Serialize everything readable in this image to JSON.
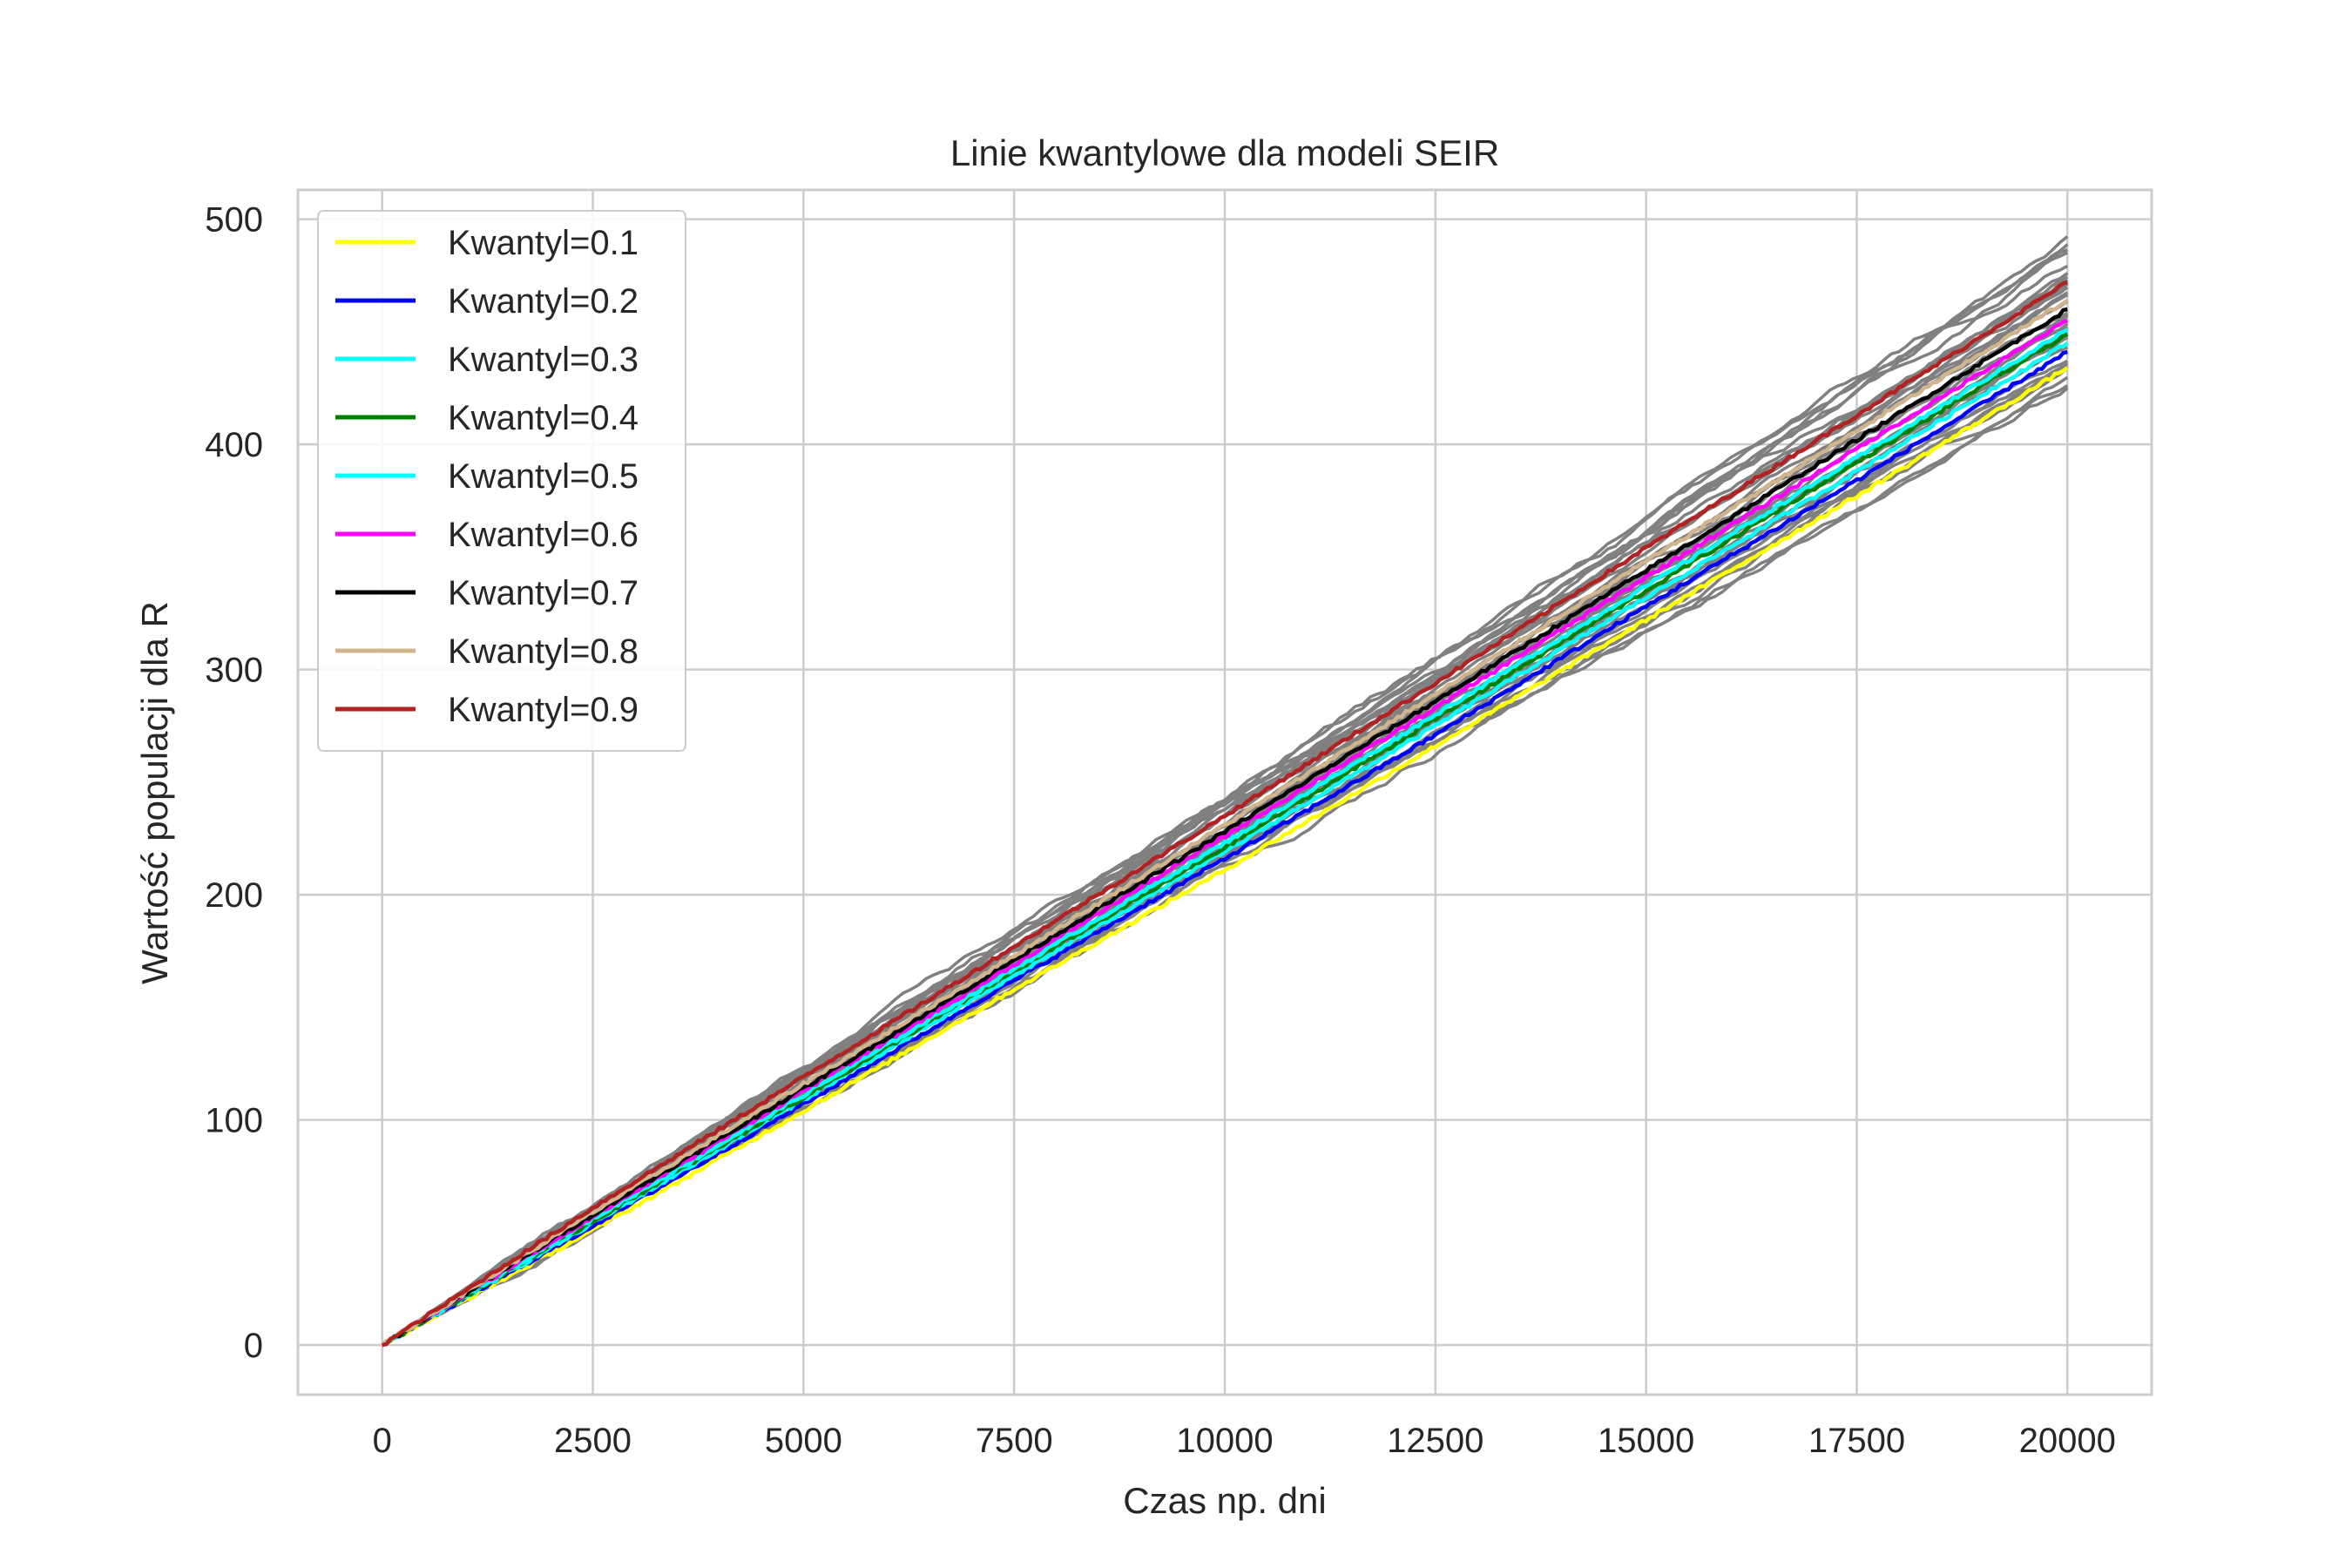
{
  "chart_data": {
    "type": "line",
    "title": "Linie kwantylowe dla modeli SEIR",
    "xlabel": "Czas np. dni",
    "ylabel": "Wartość populacji dla R",
    "xlim": [
      -1000,
      21000
    ],
    "ylim": [
      -22,
      513
    ],
    "x_ticks": [
      0,
      2500,
      5000,
      7500,
      10000,
      12500,
      15000,
      17500,
      20000
    ],
    "y_ticks": [
      0,
      100,
      200,
      300,
      400,
      500
    ],
    "grid": true,
    "legend_position": "top-left",
    "background_simulations": {
      "color": "#808080",
      "count": 30,
      "end_values_range": [
        425,
        490
      ],
      "x": [
        0,
        20000
      ]
    },
    "series": [
      {
        "name": "Kwantyl=0.1",
        "color": "#ffff00",
        "x": [
          0,
          2500,
          5000,
          7500,
          10000,
          12500,
          15000,
          17500,
          20000
        ],
        "values": [
          0,
          51,
          104,
          158,
          211,
          266,
          322,
          377,
          434
        ]
      },
      {
        "name": "Kwantyl=0.2",
        "color": "#0000ff",
        "x": [
          0,
          2500,
          5000,
          7500,
          10000,
          12500,
          15000,
          17500,
          20000
        ],
        "values": [
          0,
          53,
          107,
          162,
          216,
          271,
          328,
          384,
          441
        ]
      },
      {
        "name": "Kwantyl=0.3",
        "color": "#00ffff",
        "x": [
          0,
          2500,
          5000,
          7500,
          10000,
          12500,
          15000,
          17500,
          20000
        ],
        "values": [
          0,
          54,
          109,
          164,
          219,
          275,
          332,
          388,
          445
        ]
      },
      {
        "name": "Kwantyl=0.4",
        "color": "#008000",
        "x": [
          0,
          2500,
          5000,
          7500,
          10000,
          12500,
          15000,
          17500,
          20000
        ],
        "values": [
          0,
          55,
          110,
          166,
          221,
          278,
          335,
          392,
          449
        ]
      },
      {
        "name": "Kwantyl=0.5",
        "color": "#00ffff",
        "x": [
          0,
          2500,
          5000,
          7500,
          10000,
          12500,
          15000,
          17500,
          20000
        ],
        "values": [
          0,
          56,
          111,
          167,
          223,
          280,
          337,
          394,
          451
        ]
      },
      {
        "name": "Kwantyl=0.6",
        "color": "#ff00ff",
        "x": [
          0,
          2500,
          5000,
          7500,
          10000,
          12500,
          15000,
          17500,
          20000
        ],
        "values": [
          0,
          57,
          113,
          169,
          226,
          283,
          341,
          398,
          455
        ]
      },
      {
        "name": "Kwantyl=0.7",
        "color": "#000000",
        "x": [
          0,
          2500,
          5000,
          7500,
          10000,
          12500,
          15000,
          17500,
          20000
        ],
        "values": [
          0,
          58,
          114,
          171,
          228,
          286,
          344,
          402,
          460
        ]
      },
      {
        "name": "Kwantyl=0.8",
        "color": "#d2b48c",
        "x": [
          0,
          2500,
          5000,
          7500,
          10000,
          12500,
          15000,
          17500,
          20000
        ],
        "values": [
          0,
          59,
          116,
          173,
          231,
          289,
          348,
          406,
          464
        ]
      },
      {
        "name": "Kwantyl=0.9",
        "color": "#b22222",
        "x": [
          0,
          2500,
          5000,
          7500,
          10000,
          12500,
          15000,
          17500,
          20000
        ],
        "values": [
          0,
          61,
          119,
          177,
          235,
          294,
          354,
          413,
          472
        ]
      }
    ]
  }
}
